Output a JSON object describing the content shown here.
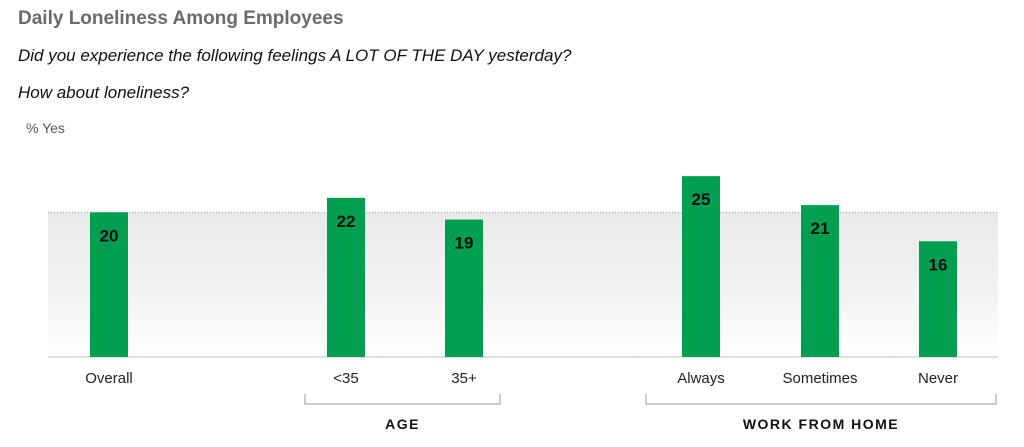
{
  "title": "Daily Loneliness Among Employees",
  "subtitle_line1": "Did you experience the following feelings A LOT OF THE DAY yesterday?",
  "subtitle_line2": "How about loneliness?",
  "chart_data": {
    "type": "bar",
    "ylabel": "% Yes",
    "ylim": [
      0,
      30
    ],
    "grid": false,
    "categories": [
      "Overall",
      "<35",
      "35+",
      "Always",
      "Sometimes",
      "Never"
    ],
    "values": [
      20,
      22,
      19,
      25,
      21,
      16
    ],
    "groups": [
      {
        "label": "AGE",
        "categories": [
          "<35",
          "35+"
        ]
      },
      {
        "label": "WORK FROM HOME",
        "categories": [
          "Always",
          "Sometimes",
          "Never"
        ]
      }
    ],
    "reference_band": {
      "from": 0,
      "to": 20
    },
    "colors": {
      "bar": "#009e4f",
      "band": "#f1f1f1",
      "baseline": "#bdbdbd",
      "bracket": "#9a9a9a"
    }
  }
}
